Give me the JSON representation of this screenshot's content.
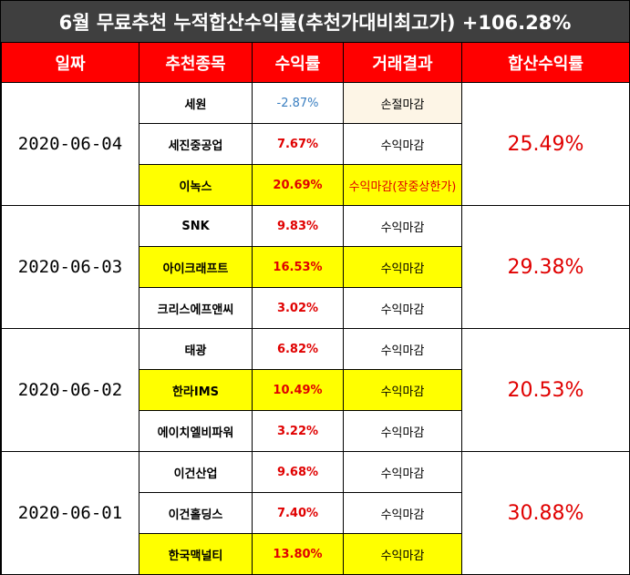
{
  "title": "6월 무료추천 누적합산수익률(추천가대비최고가) +106.28%",
  "headers": [
    "일짜",
    "추천종목",
    "수익률",
    "거래결과",
    "합산수익률"
  ],
  "groups": [
    {
      "date": "2020-06-04",
      "total": "25.49%",
      "rows": [
        {
          "stock": "세원",
          "ret": "-2.87%",
          "result": "손절마감",
          "highlight": false
        },
        {
          "stock": "세진중공업",
          "ret": "7.67%",
          "result": "수익마감",
          "highlight": false
        },
        {
          "stock": "이녹스",
          "ret": "20.69%",
          "result": "수익마감(장중상한가)",
          "highlight": true
        }
      ]
    },
    {
      "date": "2020-06-03",
      "total": "29.38%",
      "rows": [
        {
          "stock": "SNK",
          "ret": "9.83%",
          "result": "수익마감",
          "highlight": false
        },
        {
          "stock": "아이크래프트",
          "ret": "16.53%",
          "result": "수익마감",
          "highlight": true
        },
        {
          "stock": "크리스에프앤씨",
          "ret": "3.02%",
          "result": "수익마감",
          "highlight": false
        }
      ]
    },
    {
      "date": "2020-06-02",
      "total": "20.53%",
      "rows": [
        {
          "stock": "태광",
          "ret": "6.82%",
          "result": "수익마감",
          "highlight": false
        },
        {
          "stock": "한라IMS",
          "ret": "10.49%",
          "result": "수익마감",
          "highlight": true
        },
        {
          "stock": "에이치엘비파워",
          "ret": "3.22%",
          "result": "수익마감",
          "highlight": false
        }
      ]
    },
    {
      "date": "2020-06-01",
      "total": "30.88%",
      "rows": [
        {
          "stock": "이건산업",
          "ret": "9.68%",
          "result": "수익마감",
          "highlight": false
        },
        {
          "stock": "이건홀딩스",
          "ret": "7.40%",
          "result": "수익마감",
          "highlight": false
        },
        {
          "stock": "한국맥널티",
          "ret": "13.80%",
          "result": "수익마감",
          "highlight": true
        }
      ]
    }
  ]
}
